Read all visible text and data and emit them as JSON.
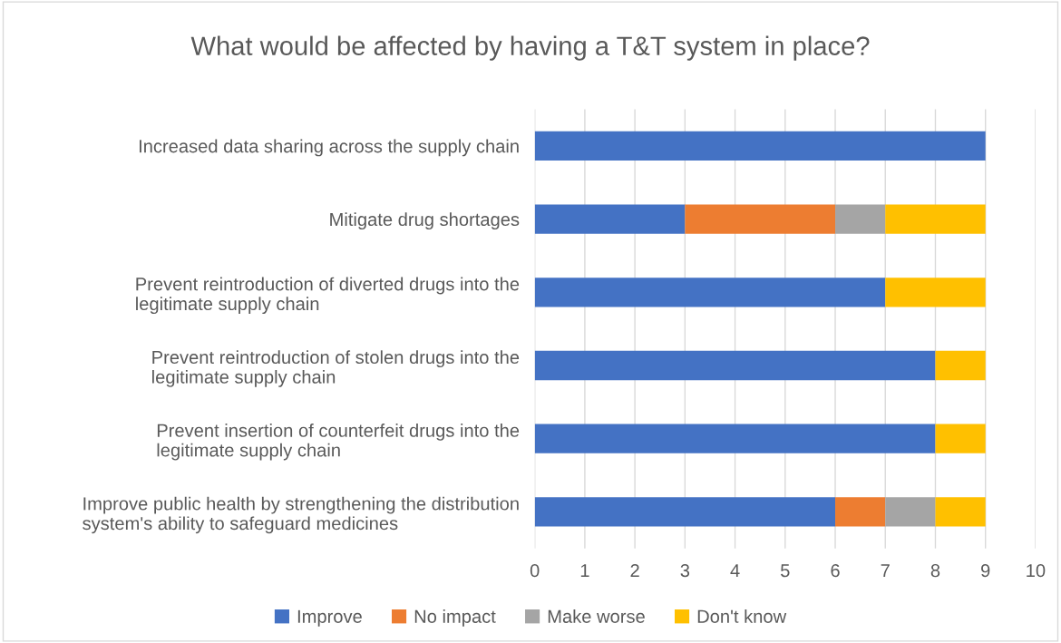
{
  "chart_data": {
    "type": "bar",
    "orientation": "horizontal",
    "stacked": true,
    "title": "What would be affected by having a T&T system in place?",
    "categories": [
      "Increased data sharing across the supply chain",
      "Mitigate drug shortages",
      "Prevent reintroduction of diverted drugs into the\nlegitimate supply chain",
      "Prevent reintroduction of stolen drugs into the\nlegitimate supply chain",
      "Prevent insertion of counterfeit drugs into the\nlegitimate supply chain",
      "Improve public health by strengthening the distribution\nsystem's ability to safeguard medicines"
    ],
    "series": [
      {
        "name": "Improve",
        "color": "#4472c4",
        "values": [
          9,
          3,
          7,
          8,
          8,
          6
        ]
      },
      {
        "name": "No impact",
        "color": "#ed7d31",
        "values": [
          0,
          3,
          0,
          0,
          0,
          1
        ]
      },
      {
        "name": "Make worse",
        "color": "#a5a5a5",
        "values": [
          0,
          1,
          0,
          0,
          0,
          1
        ]
      },
      {
        "name": "Don't know",
        "color": "#ffc000",
        "values": [
          0,
          2,
          2,
          1,
          1,
          1
        ]
      }
    ],
    "xlim": [
      0,
      10
    ],
    "xticks": [
      0,
      1,
      2,
      3,
      4,
      5,
      6,
      7,
      8,
      9,
      10
    ],
    "grid": "x",
    "legend": "bottom"
  }
}
